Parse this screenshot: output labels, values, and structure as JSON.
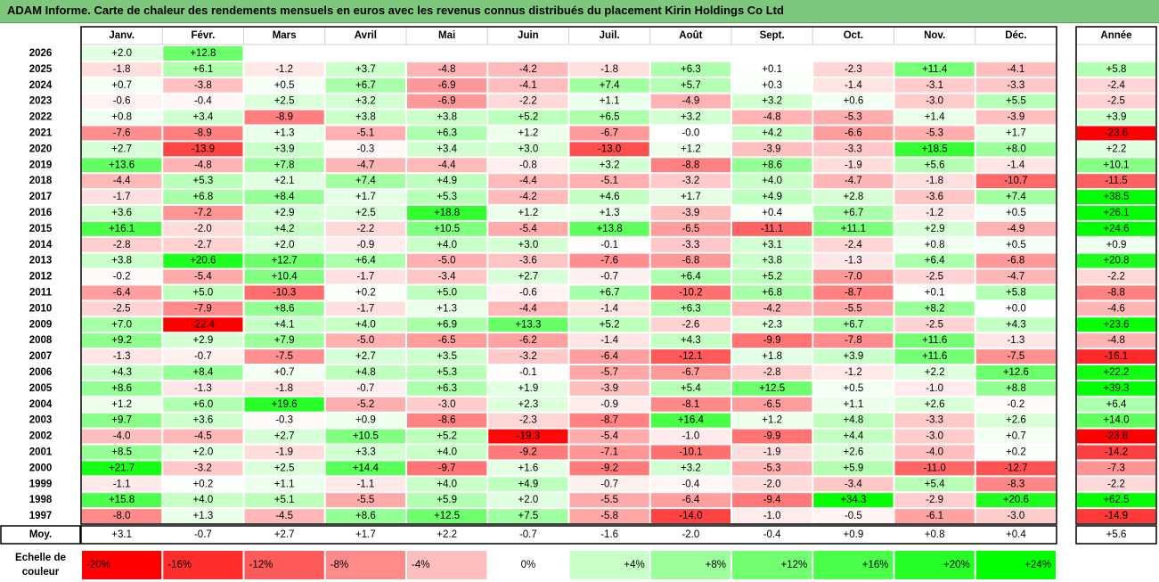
{
  "title": "ADAM Informe. Carte de chaleur des rendements mensuels en euros avec les revenus connus distribués du placement Kirin Holdings Co Ltd",
  "chart_data": {
    "type": "heatmap",
    "months": [
      "Janv.",
      "Févr.",
      "Mars",
      "Avril",
      "Mai",
      "Juin",
      "Juil.",
      "Août",
      "Sept.",
      "Oct.",
      "Nov.",
      "Déc."
    ],
    "annual_label": "Année",
    "avg_label": "Moy.",
    "rows": [
      {
        "year": "2026",
        "m": [
          2.0,
          12.8,
          null,
          null,
          null,
          null,
          null,
          null,
          null,
          null,
          null,
          null
        ],
        "annual": null
      },
      {
        "year": "2025",
        "m": [
          -1.8,
          6.1,
          -1.2,
          3.7,
          -4.8,
          -4.2,
          -1.8,
          6.3,
          0.1,
          -2.3,
          11.4,
          -4.1
        ],
        "annual": 5.8
      },
      {
        "year": "2024",
        "m": [
          0.7,
          -3.8,
          0.5,
          6.7,
          -6.9,
          -4.1,
          7.4,
          5.7,
          0.3,
          -1.4,
          -3.1,
          -3.3
        ],
        "annual": -2.4
      },
      {
        "year": "2023",
        "m": [
          -0.6,
          -0.4,
          2.5,
          3.2,
          -6.9,
          -2.2,
          1.1,
          -4.9,
          3.2,
          0.6,
          -3.0,
          5.5
        ],
        "annual": -2.5
      },
      {
        "year": "2022",
        "m": [
          0.8,
          3.4,
          -8.9,
          3.8,
          3.8,
          5.2,
          6.5,
          3.2,
          -4.8,
          -5.3,
          1.4,
          -3.9
        ],
        "annual": 3.9
      },
      {
        "year": "2021",
        "m": [
          -7.6,
          -8.9,
          1.3,
          -5.1,
          6.3,
          1.2,
          -6.7,
          -0.0,
          4.2,
          -6.6,
          -5.3,
          1.7
        ],
        "annual": -23.6
      },
      {
        "year": "2020",
        "m": [
          2.7,
          -13.9,
          3.9,
          -0.3,
          3.4,
          3.0,
          -13.0,
          1.2,
          -3.9,
          -3.3,
          18.5,
          8.0
        ],
        "annual": 2.2
      },
      {
        "year": "2019",
        "m": [
          13.6,
          -4.8,
          7.8,
          -4.7,
          -4.4,
          -0.8,
          3.2,
          -8.8,
          8.6,
          -1.9,
          5.6,
          -1.4
        ],
        "annual": 10.1
      },
      {
        "year": "2018",
        "m": [
          -4.4,
          5.3,
          2.1,
          7.4,
          4.9,
          -4.4,
          -5.1,
          -3.2,
          4.0,
          -4.7,
          -1.8,
          -10.7
        ],
        "annual": -11.5
      },
      {
        "year": "2017",
        "m": [
          -1.7,
          6.8,
          8.4,
          1.7,
          5.3,
          -4.2,
          4.6,
          1.7,
          4.9,
          2.8,
          -3.6,
          7.4
        ],
        "annual": 38.5
      },
      {
        "year": "2016",
        "m": [
          3.6,
          -7.2,
          2.9,
          2.5,
          18.8,
          1.2,
          1.3,
          -3.9,
          0.4,
          6.7,
          -1.2,
          0.5
        ],
        "annual": 26.1
      },
      {
        "year": "2015",
        "m": [
          16.1,
          -2.0,
          4.2,
          -2.2,
          10.5,
          -5.4,
          13.8,
          -6.5,
          -11.1,
          11.1,
          2.9,
          -4.9
        ],
        "annual": 24.6
      },
      {
        "year": "2014",
        "m": [
          -2.8,
          -2.7,
          2.0,
          -0.9,
          4.0,
          3.0,
          -0.1,
          -3.3,
          3.1,
          -2.4,
          0.8,
          0.5
        ],
        "annual": 0.9
      },
      {
        "year": "2013",
        "m": [
          3.8,
          20.6,
          12.7,
          6.4,
          -5.0,
          -3.6,
          -7.6,
          -6.8,
          3.8,
          -1.3,
          6.4,
          -6.8
        ],
        "annual": 20.8
      },
      {
        "year": "2012",
        "m": [
          -0.2,
          -5.4,
          10.4,
          -1.7,
          -3.4,
          2.7,
          -0.7,
          6.4,
          5.2,
          -7.0,
          -2.5,
          -4.7
        ],
        "annual": -2.2
      },
      {
        "year": "2011",
        "m": [
          -6.4,
          5.0,
          -10.3,
          0.2,
          5.0,
          -0.6,
          6.7,
          -10.2,
          6.8,
          -8.7,
          0.1,
          5.8
        ],
        "annual": -8.8
      },
      {
        "year": "2010",
        "m": [
          -2.5,
          -7.9,
          8.6,
          -1.7,
          1.3,
          -4.4,
          -1.4,
          6.3,
          -4.2,
          -5.5,
          8.2,
          0.0
        ],
        "annual": -4.6
      },
      {
        "year": "2009",
        "m": [
          7.0,
          -22.4,
          4.1,
          4.0,
          6.9,
          13.3,
          5.2,
          -2.6,
          2.3,
          6.7,
          -2.5,
          4.3
        ],
        "annual": 23.6
      },
      {
        "year": "2008",
        "m": [
          9.2,
          2.9,
          7.9,
          -5.0,
          -6.5,
          -6.2,
          -1.4,
          4.3,
          -9.9,
          -7.8,
          11.6,
          -1.3
        ],
        "annual": -4.8
      },
      {
        "year": "2007",
        "m": [
          -1.3,
          -0.7,
          -7.5,
          2.7,
          3.5,
          -3.2,
          -6.4,
          -12.1,
          1.8,
          3.9,
          11.6,
          -7.5
        ],
        "annual": -16.1
      },
      {
        "year": "2006",
        "m": [
          4.3,
          8.4,
          0.7,
          4.8,
          5.3,
          -0.1,
          -5.7,
          -6.7,
          -2.8,
          -1.2,
          2.2,
          12.6
        ],
        "annual": 22.2
      },
      {
        "year": "2005",
        "m": [
          8.6,
          -1.3,
          -1.8,
          -0.7,
          6.3,
          1.9,
          -3.9,
          5.4,
          12.5,
          0.5,
          -1.0,
          8.8
        ],
        "annual": 39.3
      },
      {
        "year": "2004",
        "m": [
          1.2,
          6.0,
          19.6,
          -5.2,
          -3.0,
          2.3,
          -0.9,
          -8.1,
          -6.5,
          1.1,
          2.6,
          -0.2
        ],
        "annual": 6.4
      },
      {
        "year": "2003",
        "m": [
          9.7,
          3.6,
          -0.3,
          0.9,
          -8.6,
          -2.3,
          -8.7,
          16.4,
          1.2,
          4.8,
          -3.3,
          2.6
        ],
        "annual": 14.0
      },
      {
        "year": "2002",
        "m": [
          -4.0,
          -4.5,
          2.7,
          10.5,
          5.2,
          -19.3,
          -5.4,
          -1.0,
          -9.9,
          4.4,
          -3.0,
          0.7
        ],
        "annual": -23.8
      },
      {
        "year": "2001",
        "m": [
          8.5,
          2.0,
          -1.9,
          3.3,
          4.0,
          -9.2,
          -7.1,
          -10.1,
          -1.9,
          2.6,
          -4.0,
          0.2
        ],
        "annual": -14.2
      },
      {
        "year": "2000",
        "m": [
          21.7,
          -3.2,
          2.5,
          14.4,
          -9.7,
          1.6,
          -9.2,
          3.2,
          -5.3,
          5.9,
          -11.0,
          -12.7
        ],
        "annual": -7.3
      },
      {
        "year": "1999",
        "m": [
          -1.1,
          0.2,
          1.1,
          -1.1,
          4.0,
          4.9,
          -0.7,
          -0.4,
          -2.0,
          -3.4,
          5.4,
          -8.3
        ],
        "annual": -2.2
      },
      {
        "year": "1998",
        "m": [
          15.8,
          4.0,
          5.1,
          -5.5,
          5.9,
          2.0,
          -5.5,
          -6.4,
          -9.4,
          34.3,
          -2.9,
          20.6
        ],
        "annual": 62.5
      },
      {
        "year": "1997",
        "m": [
          -8.0,
          1.3,
          -4.5,
          8.6,
          12.5,
          7.5,
          -5.8,
          -14.0,
          -1.0,
          -0.5,
          -6.1,
          -3.0
        ],
        "annual": -14.9
      }
    ],
    "average": {
      "m": [
        3.1,
        -0.7,
        2.7,
        1.7,
        2.2,
        -0.7,
        -1.6,
        -2.0,
        -0.4,
        0.9,
        0.8,
        0.4
      ],
      "annual": 5.6
    },
    "scale": {
      "label_line1": "Echelle de",
      "label_line2": "couleur",
      "stops": [
        -20,
        -16,
        -12,
        -8,
        -4,
        0,
        4,
        8,
        12,
        16,
        20,
        24
      ],
      "labels": [
        "-20%",
        "-16%",
        "-12%",
        "-8%",
        "-4%",
        "0%",
        "+4%",
        "+8%",
        "+12%",
        "+16%",
        "+20%",
        "+24%"
      ]
    },
    "colors": {
      "negative": "#ff0000",
      "zero": "#ffffff",
      "positive": "#00ff00"
    }
  }
}
